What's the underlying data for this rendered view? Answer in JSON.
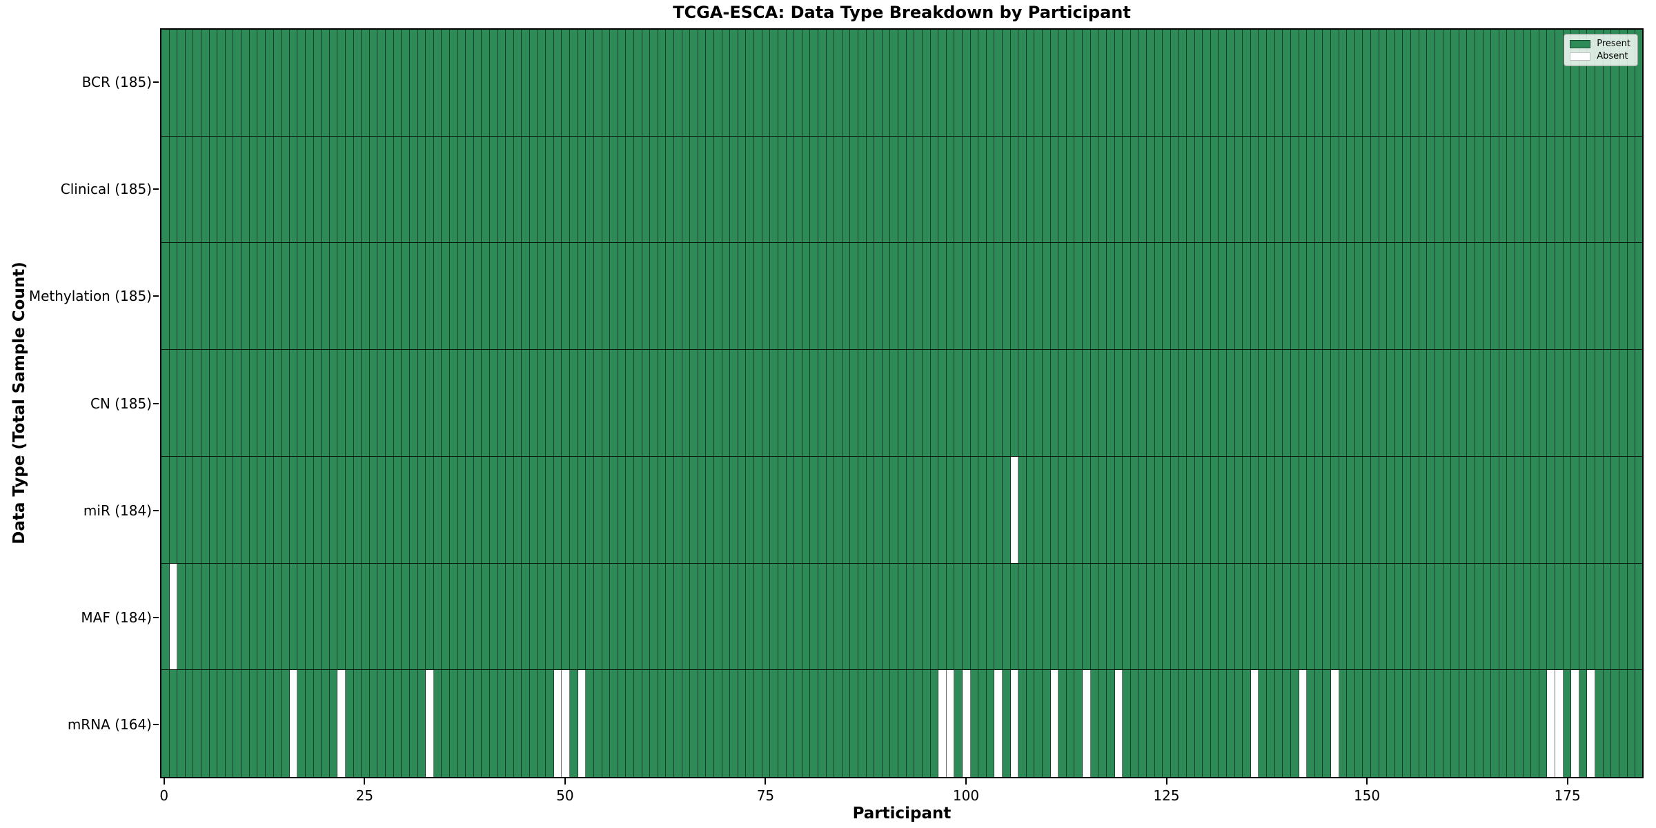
{
  "title": "TCGA-ESCA: Data Type Breakdown by Participant",
  "xlabel": "Participant",
  "ylabel": "Data Type (Total Sample Count)",
  "legend": {
    "present_label": "Present",
    "absent_label": "Absent"
  },
  "colors": {
    "present": "#2e8b57",
    "absent": "#ffffff",
    "cell_edge": "rgba(0,0,0,0.55)",
    "spine": "#000000"
  },
  "chart_data": {
    "type": "heatmap",
    "title": "TCGA-ESCA: Data Type Breakdown by Participant",
    "xlabel": "Participant",
    "ylabel": "Data Type (Total Sample Count)",
    "n_participants": 185,
    "x_ticks": [
      0,
      25,
      50,
      75,
      100,
      125,
      150,
      175
    ],
    "legend_entries": [
      "Present",
      "Absent"
    ],
    "legend_position": "upper right",
    "grid": "cell-edges",
    "rows": [
      {
        "label": "BCR (185)",
        "total": 185,
        "absent_participants": []
      },
      {
        "label": "Clinical (185)",
        "total": 185,
        "absent_participants": []
      },
      {
        "label": "Methylation (185)",
        "total": 185,
        "absent_participants": []
      },
      {
        "label": "CN (185)",
        "total": 185,
        "absent_participants": []
      },
      {
        "label": "miR (184)",
        "total": 184,
        "absent_participants": [
          106
        ]
      },
      {
        "label": "MAF (184)",
        "total": 184,
        "absent_participants": [
          1
        ]
      },
      {
        "label": "mRNA (164)",
        "total": 164,
        "absent_participants": [
          16,
          22,
          33,
          49,
          50,
          52,
          97,
          98,
          100,
          104,
          106,
          111,
          115,
          119,
          136,
          142,
          146,
          173,
          174,
          176,
          178
        ]
      }
    ]
  }
}
